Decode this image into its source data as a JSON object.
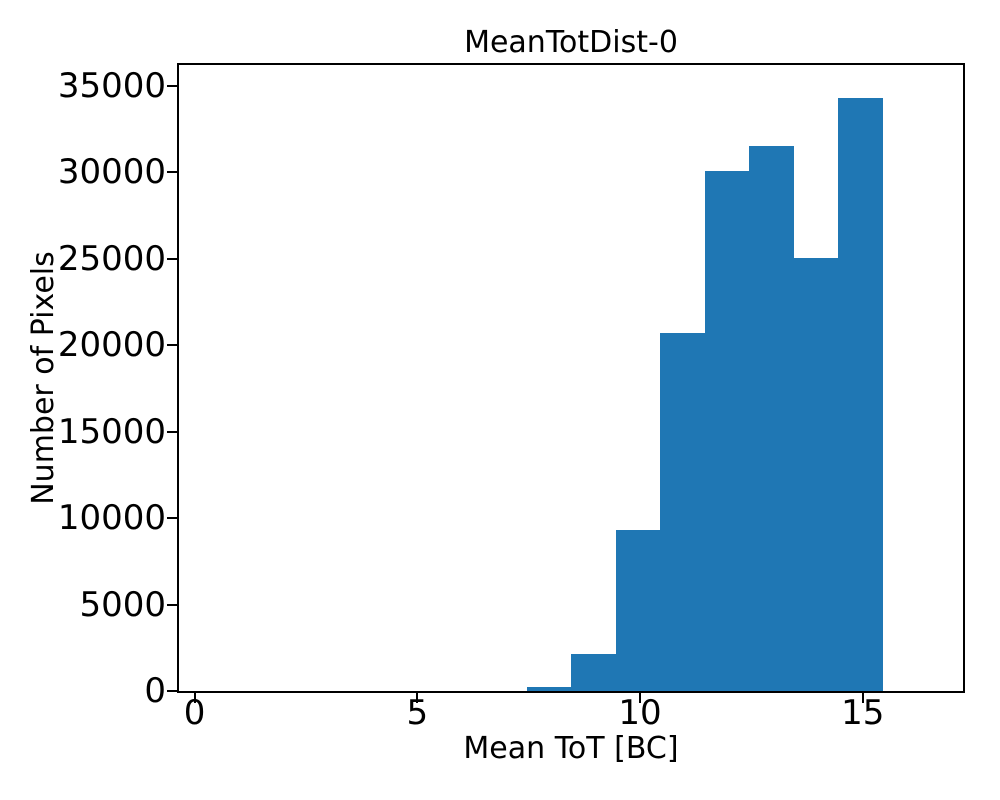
{
  "chart_data": {
    "type": "bar",
    "subtype": "histogram",
    "title": "MeanTotDist-0",
    "xlabel": "Mean ToT [BC]",
    "ylabel": "Number of Pixels",
    "bar_color": "#1f77b4",
    "axis_color": "#000000",
    "background_color": "#ffffff",
    "xlim": [
      -0.35,
      17.25
    ],
    "ylim": [
      0,
      36200
    ],
    "x_ticks": [
      0,
      5,
      10,
      15
    ],
    "y_ticks": [
      0,
      5000,
      10000,
      15000,
      20000,
      25000,
      30000,
      35000
    ],
    "bin_edges": [
      7.45,
      8.45,
      9.45,
      10.45,
      11.45,
      12.45,
      13.45,
      14.45,
      15.45
    ],
    "counts": [
      250,
      2150,
      9300,
      20700,
      30100,
      31500,
      25050,
      34300
    ],
    "grid": "off",
    "legend": "none"
  }
}
